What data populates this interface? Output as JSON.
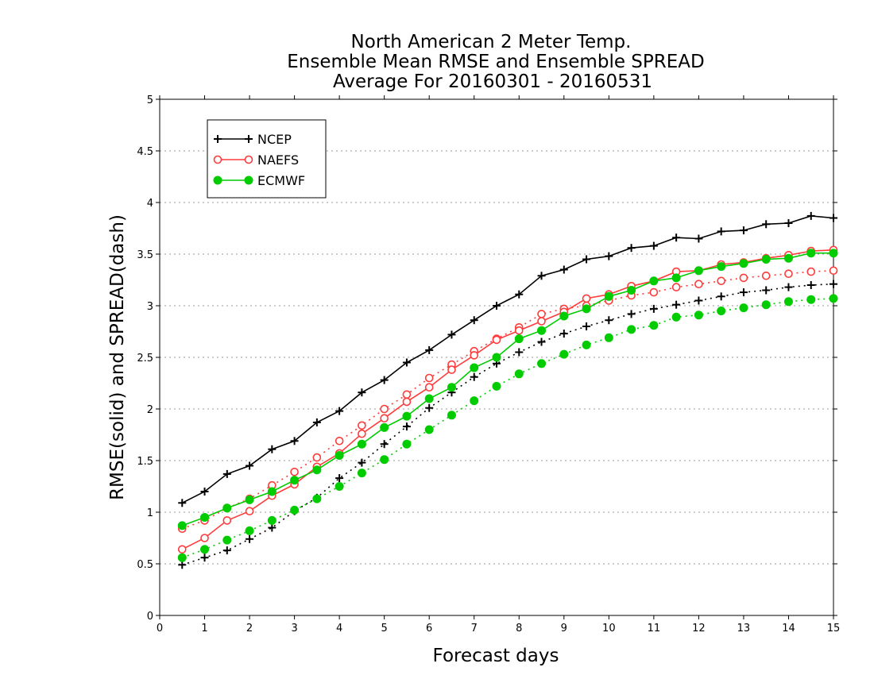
{
  "chart_data": {
    "type": "line",
    "title": [
      "North American 2 Meter Temp.",
      "Ensemble Mean RMSE and Ensemble SPREAD",
      "Average For 20160301 - 20160531"
    ],
    "xlabel": "Forecast days",
    "ylabel": "RMSE(solid) and SPREAD(dash)",
    "xlim": [
      0,
      15
    ],
    "ylim": [
      0,
      5
    ],
    "x_ticks": [
      "0",
      "1",
      "2",
      "3",
      "4",
      "5",
      "6",
      "7",
      "8",
      "9",
      "10",
      "11",
      "12",
      "13",
      "14",
      "15"
    ],
    "y_ticks": [
      "0",
      "0.5",
      "1",
      "1.5",
      "2",
      "2.5",
      "3",
      "3.5",
      "4",
      "4.5",
      "5"
    ],
    "grid": true,
    "legend_position": "top-left",
    "x": [
      0.5,
      1,
      1.5,
      2,
      2.5,
      3,
      3.5,
      4,
      4.5,
      5,
      5.5,
      6,
      6.5,
      7,
      7.5,
      8,
      8.5,
      9,
      9.5,
      10,
      10.5,
      11,
      11.5,
      12,
      12.5,
      13,
      13.5,
      14,
      14.5,
      15
    ],
    "series": [
      {
        "name": "NCEP",
        "color": "#000000",
        "marker": "plus",
        "rmse": [
          1.09,
          1.2,
          1.37,
          1.45,
          1.61,
          1.69,
          1.87,
          1.98,
          2.16,
          2.28,
          2.45,
          2.57,
          2.72,
          2.86,
          3.0,
          3.11,
          3.29,
          3.35,
          3.45,
          3.48,
          3.56,
          3.58,
          3.66,
          3.65,
          3.72,
          3.73,
          3.79,
          3.8,
          3.87,
          3.85
        ],
        "spread": [
          0.49,
          0.56,
          0.63,
          0.74,
          0.85,
          1.01,
          1.14,
          1.33,
          1.48,
          1.66,
          1.83,
          2.01,
          2.16,
          2.31,
          2.44,
          2.55,
          2.65,
          2.73,
          2.8,
          2.86,
          2.92,
          2.97,
          3.01,
          3.05,
          3.09,
          3.13,
          3.15,
          3.18,
          3.2,
          3.21
        ]
      },
      {
        "name": "NAEFS",
        "color": "#ff3b3b",
        "marker": "open-circle",
        "rmse": [
          0.64,
          0.75,
          0.92,
          1.01,
          1.16,
          1.27,
          1.44,
          1.57,
          1.76,
          1.91,
          2.07,
          2.21,
          2.38,
          2.52,
          2.67,
          2.76,
          2.85,
          2.94,
          3.07,
          3.11,
          3.19,
          3.24,
          3.33,
          3.34,
          3.4,
          3.42,
          3.46,
          3.49,
          3.53,
          3.54
        ],
        "spread": [
          0.84,
          0.92,
          1.04,
          1.13,
          1.26,
          1.39,
          1.53,
          1.69,
          1.84,
          2.0,
          2.14,
          2.3,
          2.43,
          2.56,
          2.68,
          2.79,
          2.92,
          2.97,
          3.0,
          3.05,
          3.1,
          3.13,
          3.18,
          3.21,
          3.24,
          3.27,
          3.29,
          3.31,
          3.33,
          3.34
        ]
      },
      {
        "name": "ECMWF",
        "color": "#00cc00",
        "marker": "filled-circle",
        "rmse": [
          0.87,
          0.95,
          1.04,
          1.12,
          1.2,
          1.31,
          1.41,
          1.55,
          1.66,
          1.82,
          1.93,
          2.1,
          2.21,
          2.4,
          2.5,
          2.68,
          2.76,
          2.9,
          2.97,
          3.09,
          3.15,
          3.24,
          3.27,
          3.34,
          3.38,
          3.41,
          3.45,
          3.46,
          3.51,
          3.51
        ],
        "spread": [
          0.56,
          0.64,
          0.73,
          0.82,
          0.92,
          1.02,
          1.13,
          1.25,
          1.38,
          1.51,
          1.66,
          1.8,
          1.94,
          2.08,
          2.22,
          2.34,
          2.44,
          2.53,
          2.62,
          2.69,
          2.77,
          2.81,
          2.89,
          2.91,
          2.95,
          2.98,
          3.01,
          3.04,
          3.06,
          3.07
        ]
      }
    ]
  }
}
